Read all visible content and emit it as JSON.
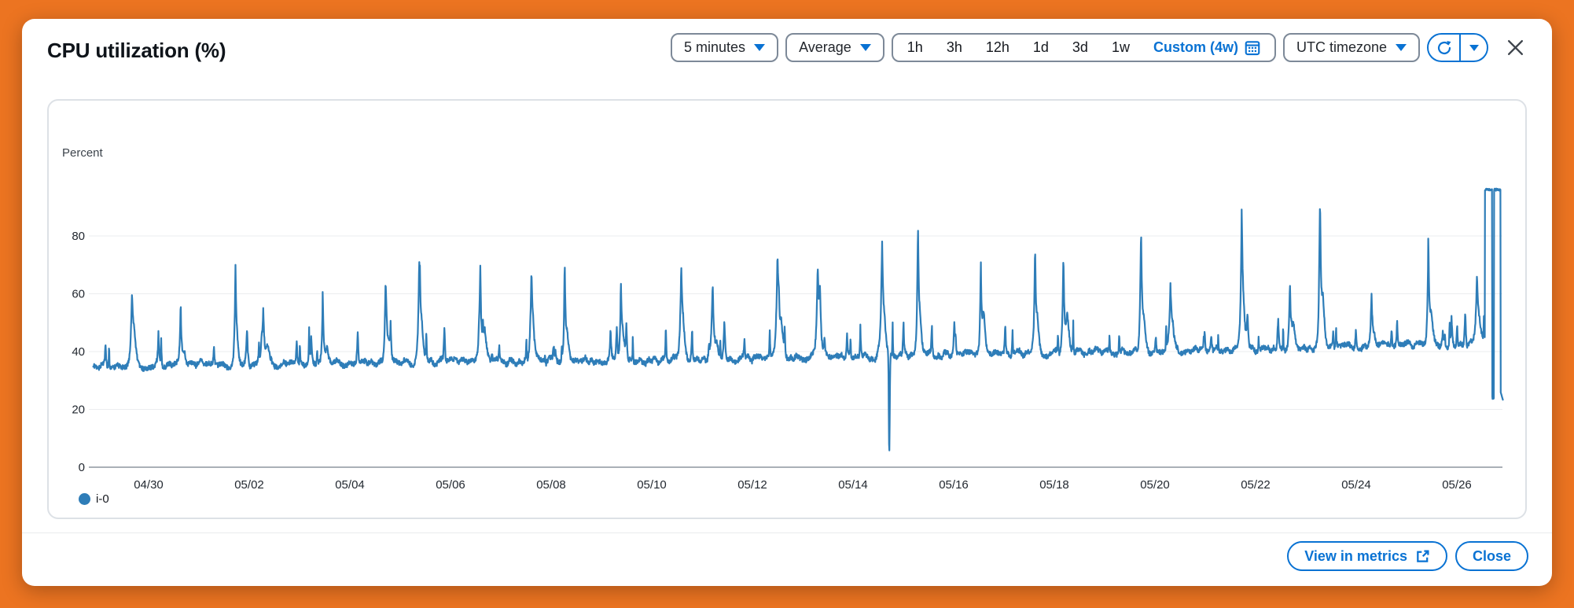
{
  "colors": {
    "frame_orange": "#EC7421",
    "accent_blue": "#0972D3",
    "chart_line_blue": "#2E7DB8",
    "control_border_gray": "#7D8998",
    "text_dark": "#16191F"
  },
  "modal": {
    "title": "CPU utilization (%)",
    "header_controls": {
      "period_label": "5 minutes",
      "statistic_label": "Average",
      "range_options": [
        "1h",
        "3h",
        "12h",
        "1d",
        "3d",
        "1w"
      ],
      "custom_range_label": "Custom (4w)",
      "timezone_label": "UTC timezone"
    },
    "footer": {
      "view_in_metrics_label": "View in metrics",
      "close_label": "Close"
    }
  },
  "chart_data": {
    "type": "line",
    "title": "CPU utilization (%)",
    "ylabel": "Percent",
    "ylim": [
      0,
      100
    ],
    "yticks": [
      0,
      20,
      40,
      60,
      80
    ],
    "xtick_labels": [
      "04/30",
      "05/02",
      "05/04",
      "05/06",
      "05/08",
      "05/10",
      "05/12",
      "05/14",
      "05/16",
      "05/18",
      "05/20",
      "05/22",
      "05/24",
      "05/26"
    ],
    "xtick_day_offsets": [
      0,
      2,
      4,
      6,
      8,
      10,
      12,
      14,
      16,
      18,
      20,
      22,
      24,
      26
    ],
    "x_range_days": [
      -1.1,
      26.92
    ],
    "grid": true,
    "legend_position": "bottom-left",
    "series": [
      {
        "name": "i-0",
        "color": "#2E7DB8"
      }
    ],
    "daily_profile": [
      {
        "date": "04/29",
        "day": -1,
        "base": 35.0,
        "peak": 57
      },
      {
        "date": "04/30",
        "day": 0,
        "base": 35.0,
        "peak": 55
      },
      {
        "date": "05/01",
        "day": 1,
        "base": 35.5,
        "peak": 66
      },
      {
        "date": "05/02",
        "day": 2,
        "base": 35.5,
        "peak": 53
      },
      {
        "date": "05/03",
        "day": 3,
        "base": 36.0,
        "peak": 61
      },
      {
        "date": "05/04",
        "day": 4,
        "base": 36.0,
        "peak": 60
      },
      {
        "date": "05/05",
        "day": 5,
        "base": 36.0,
        "peak": 67
      },
      {
        "date": "05/06",
        "day": 6,
        "base": 36.5,
        "peak": 69
      },
      {
        "date": "05/07",
        "day": 7,
        "base": 36.5,
        "peak": 63
      },
      {
        "date": "05/08",
        "day": 8,
        "base": 37.0,
        "peak": 69
      },
      {
        "date": "05/09",
        "day": 9,
        "base": 37.0,
        "peak": 60
      },
      {
        "date": "05/10",
        "day": 10,
        "base": 37.0,
        "peak": 66
      },
      {
        "date": "05/11",
        "day": 11,
        "base": 37.5,
        "peak": 62
      },
      {
        "date": "05/12",
        "day": 12,
        "base": 37.5,
        "peak": 72
      },
      {
        "date": "05/13",
        "day": 13,
        "base": 38.0,
        "peak": 65
      },
      {
        "date": "05/14",
        "day": 14,
        "base": 38.0,
        "peak": 75
      },
      {
        "date": "05/15",
        "day": 15,
        "base": 38.5,
        "peak": 80
      },
      {
        "date": "05/16",
        "day": 16,
        "base": 39.0,
        "peak": 71
      },
      {
        "date": "05/17",
        "day": 17,
        "base": 39.0,
        "peak": 72
      },
      {
        "date": "05/18",
        "day": 18,
        "base": 39.5,
        "peak": 71
      },
      {
        "date": "05/19",
        "day": 19,
        "base": 40.0,
        "peak": 80
      },
      {
        "date": "05/20",
        "day": 20,
        "base": 40.0,
        "peak": 60
      },
      {
        "date": "05/21",
        "day": 21,
        "base": 40.5,
        "peak": 85
      },
      {
        "date": "05/22",
        "day": 22,
        "base": 41.0,
        "peak": 62
      },
      {
        "date": "05/23",
        "day": 23,
        "base": 41.0,
        "peak": 87
      },
      {
        "date": "05/24",
        "day": 24,
        "base": 41.5,
        "peak": 60
      },
      {
        "date": "05/25",
        "day": 25,
        "base": 42.0,
        "peak": 77
      },
      {
        "date": "05/26",
        "day": 26,
        "base": 42.5,
        "peak": 65
      }
    ],
    "anomalies": {
      "dip": {
        "date": "05/14",
        "day": 14,
        "frac": 0.72,
        "min_value": 5
      },
      "plateaus": [
        {
          "t0": 26.56,
          "t1": 26.7,
          "value": 96
        },
        {
          "t0": 26.74,
          "t1": 26.87,
          "value": 96
        }
      ],
      "between_value": 24,
      "final_value": 23
    }
  }
}
